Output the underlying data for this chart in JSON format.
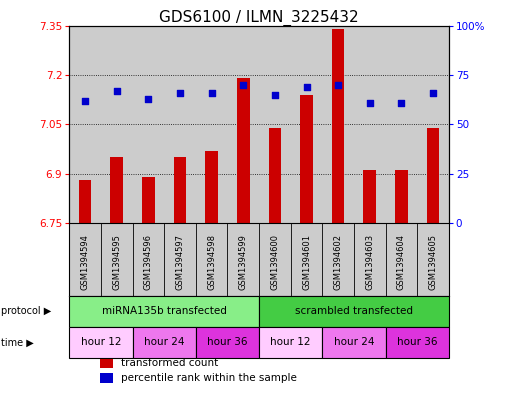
{
  "title": "GDS6100 / ILMN_3225432",
  "samples": [
    "GSM1394594",
    "GSM1394595",
    "GSM1394596",
    "GSM1394597",
    "GSM1394598",
    "GSM1394599",
    "GSM1394600",
    "GSM1394601",
    "GSM1394602",
    "GSM1394603",
    "GSM1394604",
    "GSM1394605"
  ],
  "bar_values": [
    6.88,
    6.95,
    6.89,
    6.95,
    6.97,
    7.19,
    7.04,
    7.14,
    7.34,
    6.91,
    6.91,
    7.04
  ],
  "dot_values": [
    62,
    67,
    63,
    66,
    66,
    70,
    65,
    69,
    70,
    61,
    61,
    66
  ],
  "ylim_left": [
    6.75,
    7.35
  ],
  "ylim_right": [
    0,
    100
  ],
  "yticks_left": [
    6.75,
    6.9,
    7.05,
    7.2,
    7.35
  ],
  "ytick_labels_left": [
    "6.75",
    "6.9",
    "7.05",
    "7.2",
    "7.35"
  ],
  "yticks_right": [
    0,
    25,
    50,
    75,
    100
  ],
  "ytick_labels_right": [
    "0",
    "25",
    "50",
    "75",
    "100%"
  ],
  "bar_color": "#cc0000",
  "dot_color": "#0000cc",
  "bar_bottom": 6.75,
  "protocol_groups": [
    {
      "label": "miRNA135b transfected",
      "start": 0,
      "end": 6,
      "color": "#88ee88"
    },
    {
      "label": "scrambled transfected",
      "start": 6,
      "end": 12,
      "color": "#44cc44"
    }
  ],
  "time_groups": [
    {
      "label": "hour 12",
      "start": 0,
      "end": 2,
      "color": "#ffccff"
    },
    {
      "label": "hour 24",
      "start": 2,
      "end": 4,
      "color": "#ee77ee"
    },
    {
      "label": "hour 36",
      "start": 4,
      "end": 6,
      "color": "#dd33dd"
    },
    {
      "label": "hour 12",
      "start": 6,
      "end": 8,
      "color": "#ffccff"
    },
    {
      "label": "hour 24",
      "start": 8,
      "end": 10,
      "color": "#ee77ee"
    },
    {
      "label": "hour 36",
      "start": 10,
      "end": 12,
      "color": "#dd33dd"
    }
  ],
  "legend_items": [
    {
      "label": "transformed count",
      "color": "#cc0000"
    },
    {
      "label": "percentile rank within the sample",
      "color": "#0000cc"
    }
  ],
  "background_color": "#ffffff",
  "sample_bg_color": "#cccccc",
  "title_fontsize": 11,
  "bar_width": 0.4
}
